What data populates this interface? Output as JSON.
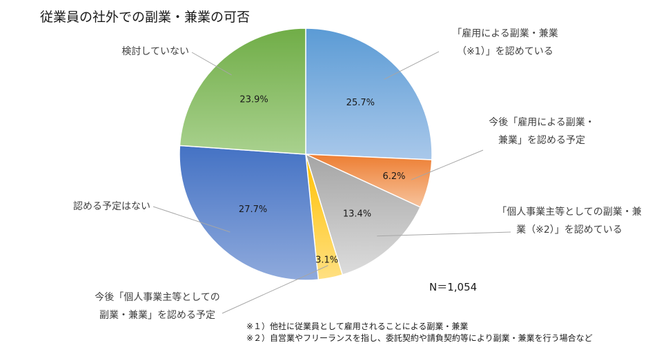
{
  "chart_data": {
    "type": "pie",
    "title": "従業員の社外での副業・兼業の可否",
    "slices": [
      {
        "label_lines": [
          "「雇用による副業・兼業",
          "（※1）」を認めている"
        ],
        "value": 25.7,
        "value_label": "25.7%",
        "color_light": "#a9c8ea",
        "color_dark": "#5b9bd5"
      },
      {
        "label_lines": [
          "今後「雇用による副業・",
          "兼業」を認める予定"
        ],
        "value": 6.2,
        "value_label": "6.2%",
        "color_light": "#f7c39c",
        "color_dark": "#ed7d31"
      },
      {
        "label_lines": [
          "「個人事業主等としての副業・兼",
          "業（※2）」を認めている"
        ],
        "value": 13.4,
        "value_label": "13.4%",
        "color_light": "#dcdcdc",
        "color_dark": "#a5a5a5"
      },
      {
        "label_lines": [
          "今後「個人事業主等としての",
          "副業・兼業」を認める予定"
        ],
        "value": 3.1,
        "value_label": "3.1%",
        "color_light": "#ffe082",
        "color_dark": "#ffc000"
      },
      {
        "label_lines": [
          "認める予定はない"
        ],
        "value": 27.7,
        "value_label": "27.7%",
        "color_light": "#8faadc",
        "color_dark": "#4472c4"
      },
      {
        "label_lines": [
          "検討していない"
        ],
        "value": 23.9,
        "value_label": "23.9%",
        "color_light": "#a9d18e",
        "color_dark": "#70ad47"
      }
    ],
    "sample_size": "N＝1,054",
    "footnotes": [
      "※１）他社に従業員として雇用されることによる副業・兼業",
      "※２）自営業やフリーランスを指し、委託契約や請負契約等により副業・兼業を行う場合など"
    ]
  }
}
